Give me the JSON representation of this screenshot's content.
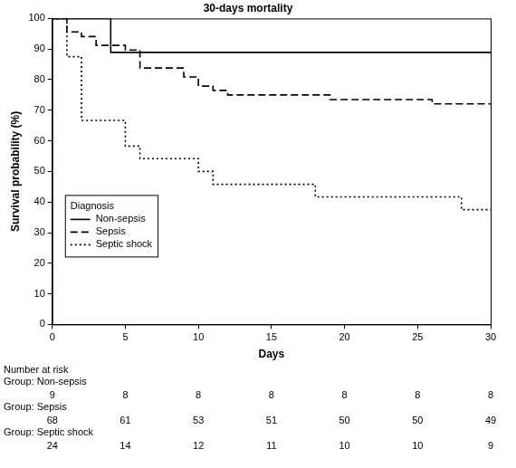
{
  "chart_data": {
    "type": "line",
    "title": "30-days mortality",
    "x_label": "Days",
    "y_label": "Survival probability (%)",
    "xlim": [
      0,
      30
    ],
    "xticks": [
      0,
      5,
      10,
      15,
      20,
      25,
      30
    ],
    "ylim": [
      0,
      100
    ],
    "yticks": [
      0,
      10,
      20,
      30,
      40,
      50,
      60,
      70,
      80,
      90,
      100
    ],
    "grid": false,
    "legend": "lower left",
    "legend_title": "Diagnosis",
    "series": [
      {
        "name": "Non-sepsis",
        "color": "#000000",
        "line_style": "solid",
        "x": [
          0,
          4,
          30
        ],
        "values": [
          100,
          88.9,
          88.9
        ]
      },
      {
        "name": "Sepsis",
        "color": "#000000",
        "line_style": "dashed",
        "x": [
          0,
          1,
          2,
          3,
          5,
          6,
          9,
          10,
          11,
          12,
          19,
          26,
          30
        ],
        "values": [
          100,
          95.6,
          94.1,
          91.2,
          89.7,
          83.8,
          80.9,
          77.9,
          76.5,
          75,
          73.5,
          72.1,
          72.1
        ]
      },
      {
        "name": "Septic shock",
        "color": "#000000",
        "line_style": "dotted",
        "x": [
          0,
          1,
          2,
          5,
          6,
          10,
          11,
          18,
          28,
          30
        ],
        "values": [
          100,
          87.5,
          66.7,
          58.3,
          54.2,
          50,
          45.8,
          41.7,
          37.5,
          37.5
        ]
      }
    ],
    "number_at_risk": {
      "title": "Number at risk",
      "x": [
        0,
        5,
        10,
        15,
        20,
        25,
        30
      ],
      "groups": [
        {
          "label": "Group: Non-sepsis",
          "values": [
            9,
            8,
            8,
            8,
            8,
            8,
            8
          ]
        },
        {
          "label": "Group: Sepsis",
          "values": [
            68,
            61,
            53,
            51,
            50,
            50,
            49
          ]
        },
        {
          "label": "Group: Septic shock",
          "values": [
            24,
            14,
            12,
            11,
            10,
            10,
            9
          ]
        }
      ]
    }
  }
}
